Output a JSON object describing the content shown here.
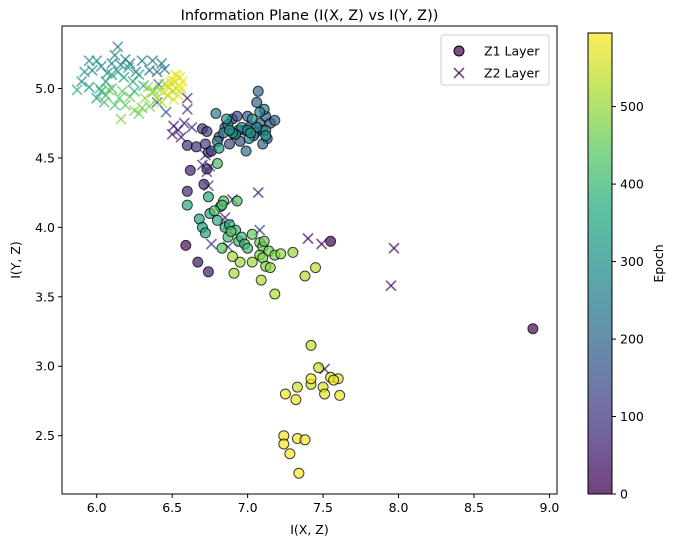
{
  "chart_data": {
    "type": "scatter",
    "title": "Information Plane (I(X, Z) vs I(Y, Z))",
    "xlabel": "I(X, Z)",
    "ylabel": "I(Y, Z)",
    "xlim": [
      5.77,
      9.05
    ],
    "ylim": [
      2.08,
      5.45
    ],
    "xticks": [
      6.0,
      6.5,
      7.0,
      7.5,
      8.0,
      8.5,
      9.0
    ],
    "xtick_labels": [
      "6.0",
      "6.5",
      "7.0",
      "7.5",
      "8.0",
      "8.5",
      "9.0"
    ],
    "yticks": [
      2.5,
      3.0,
      3.5,
      4.0,
      4.5,
      5.0
    ],
    "ytick_labels": [
      "2.5",
      "3.0",
      "3.5",
      "4.0",
      "4.5",
      "5.0"
    ],
    "grid": false,
    "legend_position": "top-right",
    "colormap": "viridis",
    "colorbar": {
      "label": "Epoch",
      "range": [
        0,
        595
      ],
      "ticks": [
        0,
        100,
        200,
        300,
        400,
        500
      ],
      "tick_labels": [
        "0",
        "100",
        "200",
        "300",
        "400",
        "500"
      ]
    },
    "series": [
      {
        "name": "Z1 Layer",
        "marker": "circle",
        "points": [
          [
            8.89,
            3.27,
            5
          ],
          [
            7.55,
            3.9,
            10
          ],
          [
            6.59,
            3.87,
            20
          ],
          [
            6.67,
            3.75,
            30
          ],
          [
            6.74,
            3.68,
            40
          ],
          [
            6.62,
            4.41,
            50
          ],
          [
            6.6,
            4.26,
            60
          ],
          [
            6.71,
            4.31,
            70
          ],
          [
            6.73,
            4.42,
            75
          ],
          [
            6.6,
            4.59,
            80
          ],
          [
            6.66,
            4.58,
            90
          ],
          [
            6.7,
            4.71,
            95
          ],
          [
            6.73,
            4.69,
            100
          ],
          [
            6.74,
            4.54,
            105
          ],
          [
            6.72,
            4.6,
            110
          ],
          [
            6.76,
            4.55,
            115
          ],
          [
            6.81,
            4.65,
            120
          ],
          [
            6.85,
            4.72,
            125
          ],
          [
            6.9,
            4.78,
            130
          ],
          [
            6.93,
            4.8,
            135
          ],
          [
            6.88,
            4.6,
            140
          ],
          [
            6.95,
            4.62,
            145
          ],
          [
            6.98,
            4.7,
            150
          ],
          [
            7.0,
            4.8,
            155
          ],
          [
            7.02,
            4.73,
            160
          ],
          [
            7.05,
            4.68,
            165
          ],
          [
            7.08,
            4.75,
            170
          ],
          [
            7.1,
            4.7,
            175
          ],
          [
            7.12,
            4.8,
            180
          ],
          [
            7.15,
            4.75,
            185
          ],
          [
            7.06,
            4.9,
            190
          ],
          [
            7.07,
            4.98,
            195
          ],
          [
            7.18,
            4.77,
            200
          ],
          [
            7.13,
            4.64,
            205
          ],
          [
            7.1,
            4.6,
            210
          ],
          [
            7.04,
            4.66,
            215
          ],
          [
            6.99,
            4.55,
            220
          ],
          [
            6.94,
            4.7,
            225
          ],
          [
            6.91,
            4.67,
            230
          ],
          [
            6.87,
            4.74,
            235
          ],
          [
            6.84,
            4.68,
            240
          ],
          [
            6.8,
            4.62,
            245
          ],
          [
            6.79,
            4.82,
            250
          ],
          [
            7.11,
            4.85,
            255
          ],
          [
            7.08,
            4.83,
            260
          ],
          [
            7.12,
            4.7,
            265
          ],
          [
            7.06,
            4.72,
            270
          ],
          [
            7.01,
            4.64,
            275
          ],
          [
            6.96,
            4.72,
            280
          ],
          [
            6.92,
            4.67,
            285
          ],
          [
            6.9,
            4.68,
            290
          ],
          [
            7.03,
            4.78,
            295
          ],
          [
            7.0,
            4.7,
            300
          ],
          [
            6.86,
            4.78,
            305
          ],
          [
            7.12,
            4.66,
            310
          ],
          [
            6.88,
            4.7,
            315
          ],
          [
            7.02,
            4.68,
            320
          ],
          [
            6.81,
            4.57,
            330
          ],
          [
            6.68,
            4.06,
            335
          ],
          [
            6.7,
            4.0,
            340
          ],
          [
            6.72,
            3.96,
            345
          ],
          [
            6.75,
            4.1,
            350
          ],
          [
            6.6,
            4.16,
            355
          ],
          [
            6.74,
            4.22,
            360
          ],
          [
            6.82,
            4.15,
            365
          ],
          [
            6.8,
            4.05,
            370
          ],
          [
            6.85,
            4.0,
            375
          ],
          [
            6.88,
            4.02,
            380
          ],
          [
            6.92,
            3.98,
            385
          ],
          [
            6.94,
            3.9,
            390
          ],
          [
            6.96,
            3.93,
            395
          ],
          [
            6.98,
            3.88,
            400
          ],
          [
            7.0,
            3.85,
            405
          ],
          [
            6.87,
            3.93,
            410
          ],
          [
            6.8,
            4.46,
            415
          ],
          [
            6.84,
            4.19,
            420
          ],
          [
            6.93,
            4.19,
            425
          ],
          [
            6.83,
            4.16,
            430
          ],
          [
            6.78,
            4.12,
            435
          ],
          [
            6.83,
            3.85,
            440
          ],
          [
            6.89,
            3.97,
            445
          ],
          [
            7.03,
            3.95,
            450
          ],
          [
            7.08,
            3.89,
            455
          ],
          [
            7.1,
            3.86,
            460
          ],
          [
            7.14,
            3.83,
            465
          ],
          [
            7.18,
            3.8,
            470
          ],
          [
            7.08,
            3.8,
            475
          ],
          [
            7.1,
            3.78,
            480
          ],
          [
            7.12,
            3.72,
            485
          ],
          [
            7.15,
            3.71,
            490
          ],
          [
            7.22,
            3.81,
            495
          ],
          [
            7.3,
            3.82,
            500
          ],
          [
            6.95,
            3.75,
            505
          ],
          [
            6.9,
            3.79,
            510
          ],
          [
            6.91,
            3.67,
            515
          ],
          [
            7.09,
            3.62,
            520
          ],
          [
            7.18,
            3.52,
            525
          ],
          [
            7.38,
            3.65,
            530
          ],
          [
            7.45,
            3.71,
            535
          ],
          [
            7.42,
            3.15,
            540
          ],
          [
            7.47,
            2.99,
            545
          ],
          [
            7.33,
            2.85,
            550
          ],
          [
            7.42,
            2.87,
            555
          ],
          [
            7.5,
            2.85,
            560
          ],
          [
            7.55,
            2.92,
            565
          ],
          [
            7.6,
            2.91,
            570
          ],
          [
            7.61,
            2.79,
            575
          ],
          [
            7.51,
            2.8,
            578
          ],
          [
            7.25,
            2.8,
            580
          ],
          [
            7.32,
            2.76,
            583
          ],
          [
            7.42,
            2.91,
            585
          ],
          [
            7.24,
            2.5,
            587
          ],
          [
            7.33,
            2.48,
            589
          ],
          [
            7.38,
            2.47,
            590
          ],
          [
            7.24,
            2.44,
            592
          ],
          [
            7.28,
            2.37,
            593
          ],
          [
            7.34,
            2.23,
            594
          ],
          [
            7.57,
            2.9,
            576
          ],
          [
            7.03,
            3.75,
            508
          ],
          [
            7.11,
            3.9,
            462
          ]
        ]
      },
      {
        "name": "Z2 Layer",
        "marker": "x",
        "points": [
          [
            7.97,
            3.85,
            15
          ],
          [
            7.95,
            3.58,
            20
          ],
          [
            7.49,
            3.88,
            25
          ],
          [
            7.4,
            3.92,
            30
          ],
          [
            7.51,
            2.98,
            40
          ],
          [
            6.9,
            4.2,
            60
          ],
          [
            7.07,
            4.25,
            50
          ],
          [
            6.85,
            4.07,
            65
          ],
          [
            6.7,
            4.45,
            70
          ],
          [
            6.72,
            4.52,
            75
          ],
          [
            6.75,
            4.44,
            80
          ],
          [
            6.73,
            4.4,
            85
          ],
          [
            6.74,
            4.3,
            90
          ],
          [
            6.76,
            3.88,
            95
          ],
          [
            6.87,
            3.86,
            100
          ],
          [
            6.87,
            4.02,
            105
          ],
          [
            7.08,
            3.98,
            110
          ],
          [
            6.58,
            4.75,
            60
          ],
          [
            6.54,
            4.7,
            55
          ],
          [
            6.56,
            4.65,
            65
          ],
          [
            6.5,
            4.67,
            50
          ],
          [
            6.6,
            4.93,
            70
          ],
          [
            6.6,
            4.85,
            90
          ],
          [
            6.51,
            4.73,
            45
          ],
          [
            6.63,
            4.72,
            85
          ],
          [
            6.46,
            4.83,
            180
          ],
          [
            6.4,
            4.9,
            200
          ],
          [
            6.41,
            5.03,
            210
          ],
          [
            6.4,
            5.12,
            215
          ],
          [
            6.35,
            5.13,
            220
          ],
          [
            6.37,
            5.2,
            225
          ],
          [
            6.43,
            5.18,
            230
          ],
          [
            6.45,
            5.14,
            235
          ],
          [
            6.3,
            5.2,
            240
          ],
          [
            6.26,
            5.12,
            245
          ],
          [
            6.22,
            5.18,
            250
          ],
          [
            6.19,
            5.21,
            255
          ],
          [
            6.16,
            5.17,
            260
          ],
          [
            6.14,
            5.3,
            265
          ],
          [
            6.12,
            5.24,
            270
          ],
          [
            6.1,
            5.18,
            275
          ],
          [
            6.07,
            5.11,
            280
          ],
          [
            6.03,
            5.16,
            285
          ],
          [
            6.0,
            5.2,
            290
          ],
          [
            5.97,
            5.13,
            295
          ],
          [
            5.95,
            5.2,
            300
          ],
          [
            5.92,
            5.12,
            305
          ],
          [
            5.9,
            5.05,
            310
          ],
          [
            5.95,
            5.01,
            315
          ],
          [
            6.0,
            4.93,
            320
          ],
          [
            6.03,
            4.98,
            325
          ],
          [
            6.06,
            5.05,
            330
          ],
          [
            6.1,
            5.1,
            335
          ],
          [
            6.14,
            5.12,
            340
          ],
          [
            6.18,
            5.08,
            345
          ],
          [
            6.21,
            5.15,
            350
          ],
          [
            6.24,
            5.05,
            355
          ],
          [
            6.28,
            5.1,
            360
          ],
          [
            6.31,
            5.02,
            365
          ],
          [
            6.25,
            4.98,
            370
          ],
          [
            5.87,
            4.99,
            390
          ],
          [
            6.02,
            5.0,
            400
          ],
          [
            6.06,
            4.95,
            410
          ],
          [
            6.1,
            5.0,
            420
          ],
          [
            6.05,
            4.9,
            425
          ],
          [
            6.12,
            4.88,
            430
          ],
          [
            6.15,
            4.93,
            435
          ],
          [
            6.17,
            4.98,
            440
          ],
          [
            6.19,
            4.88,
            445
          ],
          [
            6.22,
            4.94,
            450
          ],
          [
            6.08,
            4.99,
            455
          ],
          [
            6.3,
            4.86,
            460
          ],
          [
            6.28,
            4.82,
            465
          ],
          [
            6.35,
            4.87,
            470
          ],
          [
            6.25,
            4.84,
            475
          ],
          [
            6.16,
            4.78,
            480
          ],
          [
            6.32,
            4.93,
            485
          ],
          [
            6.38,
            4.98,
            490
          ],
          [
            6.4,
            4.93,
            495
          ],
          [
            6.34,
            5.01,
            500
          ],
          [
            6.37,
            4.97,
            505
          ],
          [
            6.42,
            4.99,
            510
          ],
          [
            6.45,
            5.03,
            515
          ],
          [
            6.48,
            5.01,
            520
          ],
          [
            6.5,
            4.98,
            525
          ],
          [
            6.47,
            4.95,
            530
          ],
          [
            6.43,
            4.9,
            535
          ],
          [
            6.52,
            5.05,
            540
          ],
          [
            6.53,
            5.0,
            545
          ],
          [
            6.55,
            5.08,
            550
          ],
          [
            6.49,
            5.04,
            555
          ],
          [
            6.56,
            5.0,
            560
          ],
          [
            6.54,
            4.95,
            565
          ],
          [
            6.51,
            4.92,
            570
          ],
          [
            6.5,
            5.06,
            575
          ],
          [
            6.52,
            5.1,
            580
          ],
          [
            6.57,
            5.05,
            585
          ],
          [
            6.53,
            5.09,
            590
          ],
          [
            6.55,
            5.02,
            593
          ],
          [
            6.46,
            4.99,
            594
          ]
        ]
      }
    ]
  }
}
